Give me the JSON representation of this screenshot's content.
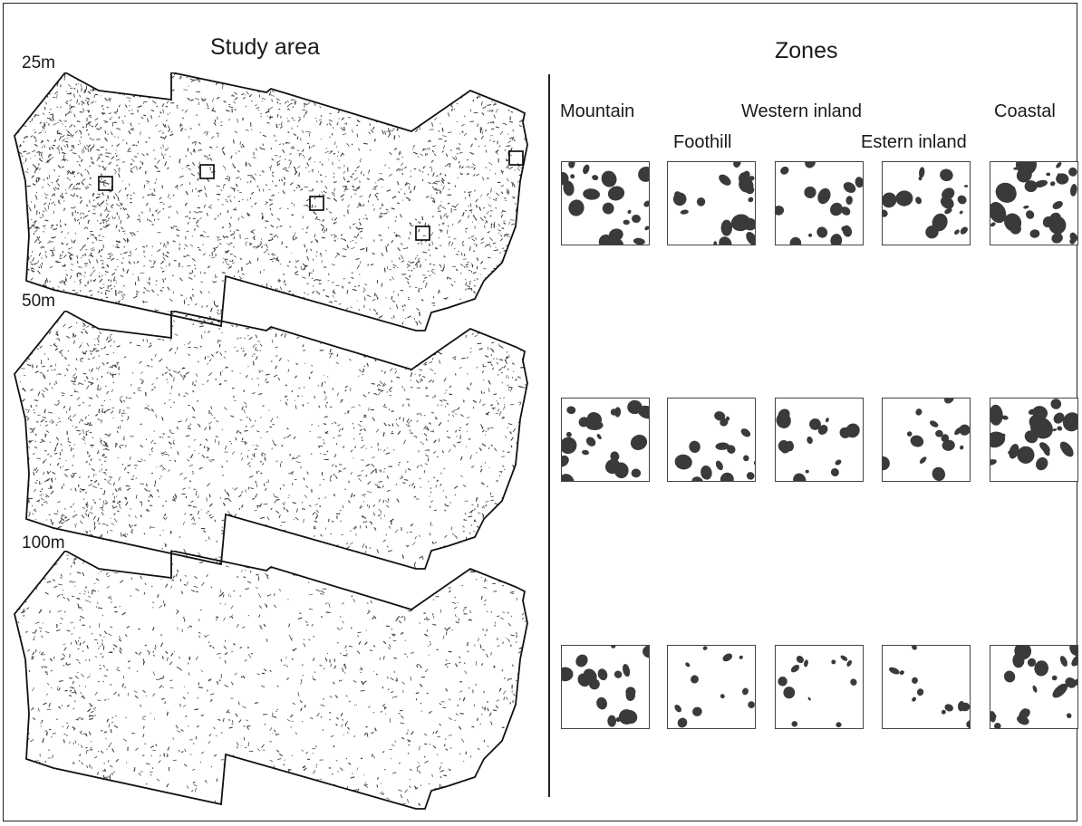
{
  "titles": {
    "study_area": "Study area",
    "zones": "Zones"
  },
  "resolutions": [
    "25m",
    "50m",
    "100m"
  ],
  "zones": [
    {
      "label": "Mountain"
    },
    {
      "label": "Foothill"
    },
    {
      "label": "Western inland"
    },
    {
      "label": "Estern inland"
    },
    {
      "label": "Coastal"
    }
  ],
  "colors": {
    "ink": "#1a1a1a",
    "patch": "#3a3a3a",
    "background": "#ffffff",
    "outline": "#111111"
  },
  "map_density_levels": [
    1.0,
    0.7,
    0.45
  ],
  "tile_cover_fractions": [
    [
      0.38,
      0.24,
      0.22,
      0.22,
      0.5
    ],
    [
      0.32,
      0.17,
      0.17,
      0.15,
      0.4
    ],
    [
      0.22,
      0.07,
      0.1,
      0.07,
      0.3
    ]
  ]
}
